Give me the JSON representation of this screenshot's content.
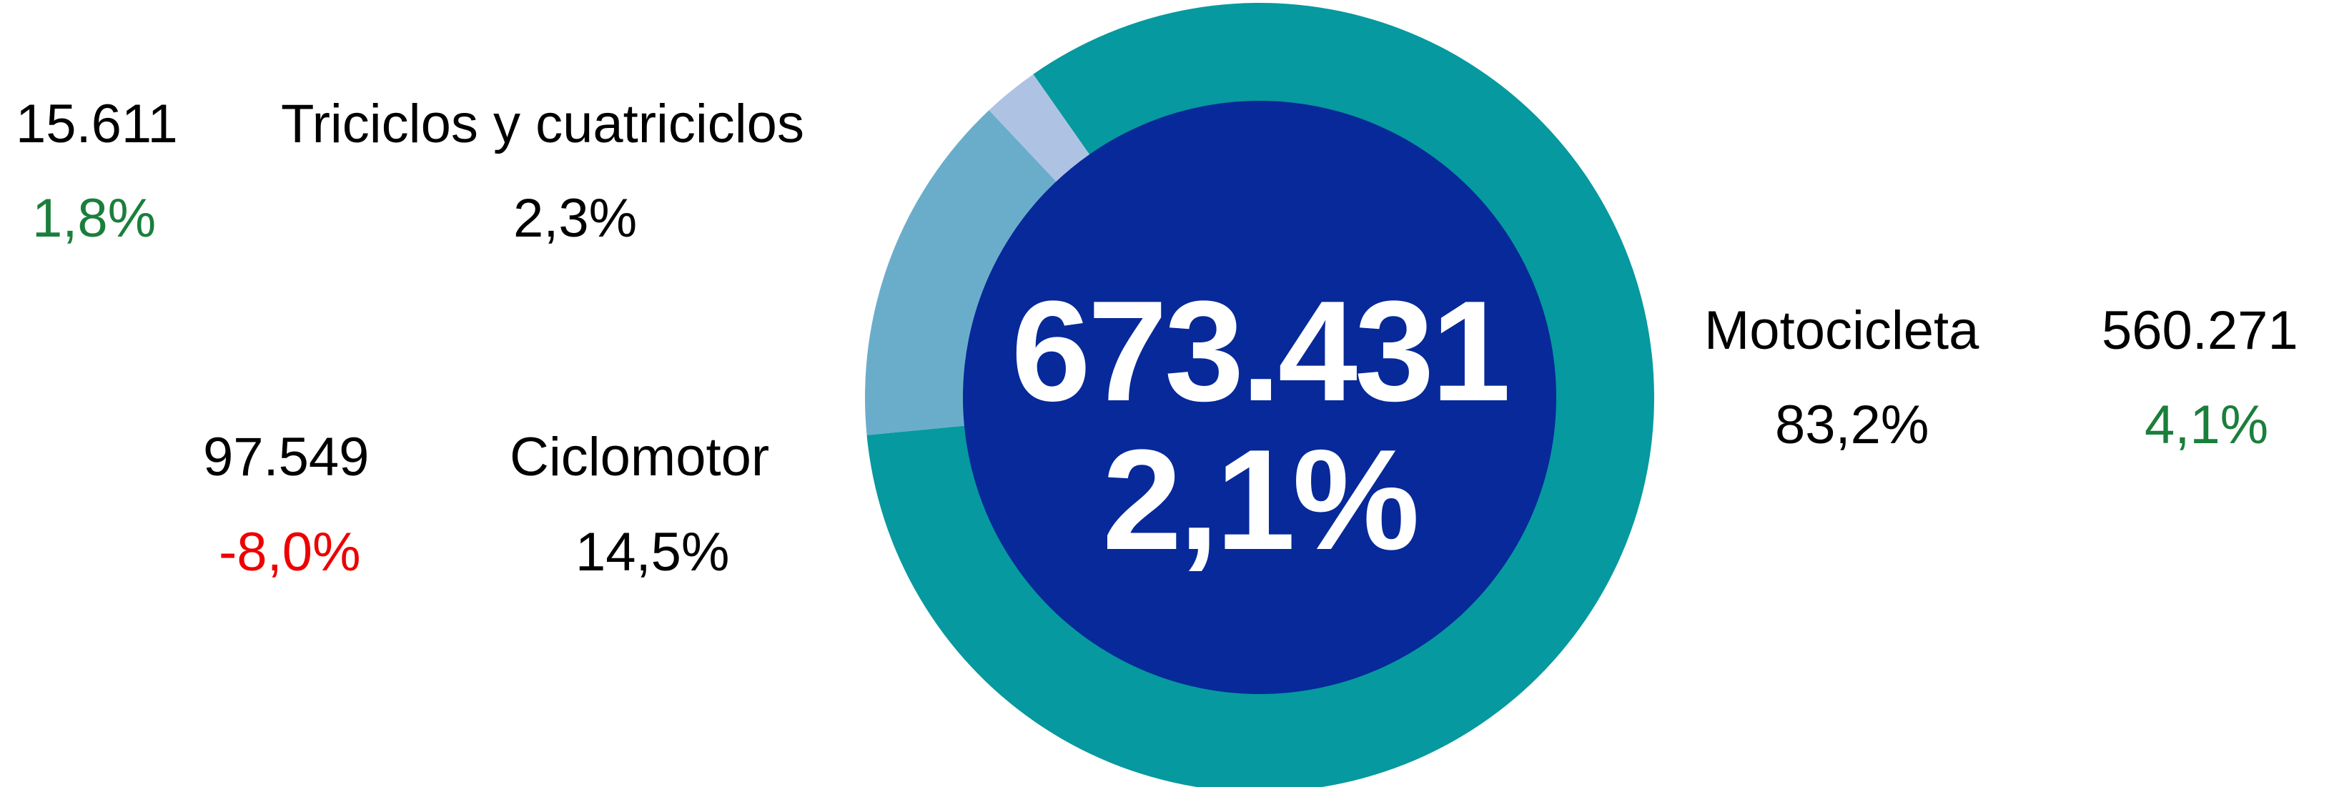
{
  "colors": {
    "motocicleta": "#06999f",
    "ciclomotor": "#6aadcb",
    "triciclos": "#aec3e3",
    "center": "#07299a",
    "positive": "#1a7f3c",
    "negative": "#ee0000",
    "neutral": "#000000"
  },
  "chart_data": {
    "type": "pie",
    "title": "",
    "total": "673.431",
    "total_change": "2,1%",
    "series": [
      {
        "name": "Motocicleta",
        "units": "560.271",
        "share_label": "83,2%",
        "share": 83.2,
        "change": "4,1%",
        "color": "#06999f"
      },
      {
        "name": "Ciclomotor",
        "units": "97.549",
        "share_label": "14,5%",
        "share": 14.5,
        "change": "-8,0%",
        "color": "#6aadcb"
      },
      {
        "name": "Triciclos y cuatriciclos",
        "units": "15.611",
        "share_label": "2,3%",
        "share": 2.3,
        "change": "1,8%",
        "color": "#aec3e3"
      }
    ]
  }
}
